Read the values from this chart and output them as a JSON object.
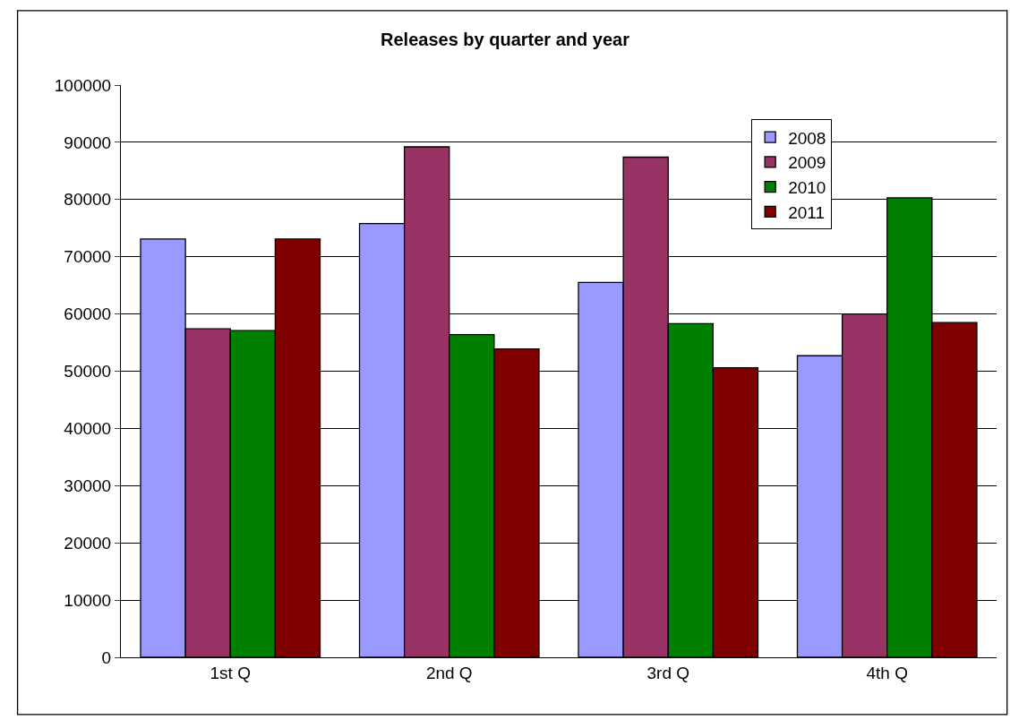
{
  "chart_data": {
    "type": "bar",
    "title": "Releases by quarter and year",
    "categories": [
      "1st Q",
      "2nd Q",
      "3rd Q",
      "4th Q"
    ],
    "series": [
      {
        "name": "2008",
        "color": "#9999ff",
        "values": [
          73100,
          75800,
          65500,
          52700
        ]
      },
      {
        "name": "2009",
        "color": "#993366",
        "values": [
          57400,
          89200,
          87400,
          60000
        ]
      },
      {
        "name": "2010",
        "color": "#008000",
        "values": [
          57100,
          56400,
          58300,
          80300
        ]
      },
      {
        "name": "2011",
        "color": "#800000",
        "values": [
          73100,
          53900,
          50600,
          58500
        ]
      }
    ],
    "ylim": [
      0,
      100000
    ],
    "yticks": [
      0,
      10000,
      20000,
      30000,
      40000,
      50000,
      60000,
      70000,
      80000,
      90000,
      100000
    ],
    "grid": "y",
    "legend": "top right"
  }
}
